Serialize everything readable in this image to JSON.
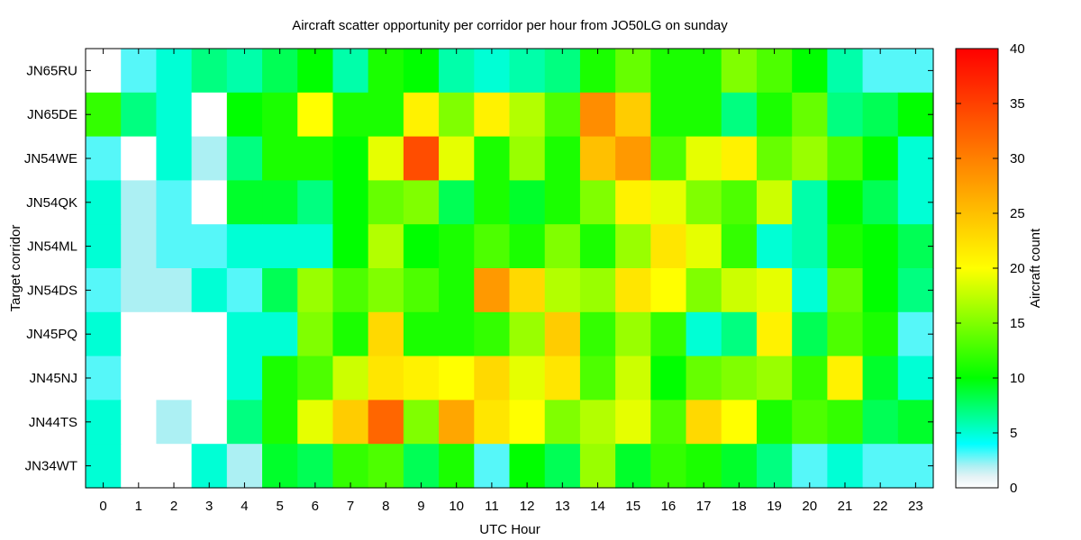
{
  "chart_data": {
    "type": "heatmap",
    "title": "Aircraft scatter opportunity per corridor per hour from JO50LG on sunday",
    "xlabel": "UTC Hour",
    "ylabel": "Target corridor",
    "colorbar_label": "Aircraft count",
    "x": [
      "0",
      "1",
      "2",
      "3",
      "4",
      "5",
      "6",
      "7",
      "8",
      "9",
      "10",
      "11",
      "12",
      "13",
      "14",
      "15",
      "16",
      "17",
      "18",
      "19",
      "20",
      "21",
      "22",
      "23"
    ],
    "y": [
      "JN65RU",
      "JN65DE",
      "JN54WE",
      "JN54QK",
      "JN54ML",
      "JN54DS",
      "JN45PQ",
      "JN45NJ",
      "JN44TS",
      "JN34WT"
    ],
    "zlim": [
      0,
      40
    ],
    "colorbar_ticks": [
      0,
      5,
      10,
      15,
      20,
      25,
      30,
      35,
      40
    ],
    "values": [
      [
        0,
        3,
        5,
        7,
        6,
        8,
        10,
        6,
        11,
        10,
        6,
        5,
        6,
        7,
        11,
        14,
        11,
        11,
        15,
        13,
        10,
        6,
        3,
        3
      ],
      [
        12,
        7,
        5,
        0,
        10,
        11,
        20,
        11,
        11,
        21,
        15,
        21,
        17,
        13,
        29,
        24,
        11,
        11,
        7,
        11,
        14,
        7,
        8,
        10
      ],
      [
        3,
        0,
        5,
        2,
        7,
        11,
        11,
        10,
        19,
        34,
        19,
        11,
        16,
        11,
        25,
        28,
        13,
        19,
        21,
        14,
        16,
        13,
        10,
        5
      ],
      [
        5,
        2,
        3,
        0,
        9,
        9,
        7,
        10,
        14,
        15,
        8,
        11,
        9,
        11,
        15,
        21,
        19,
        15,
        13,
        18,
        6,
        10,
        8,
        5
      ],
      [
        5,
        2,
        3,
        3,
        5,
        5,
        5,
        10,
        17,
        10,
        11,
        13,
        11,
        15,
        11,
        16,
        22,
        19,
        12,
        5,
        6,
        11,
        10,
        8
      ],
      [
        3,
        2,
        2,
        5,
        3,
        8,
        16,
        13,
        15,
        13,
        11,
        28,
        23,
        17,
        16,
        22,
        20,
        15,
        18,
        19,
        5,
        14,
        10,
        7
      ],
      [
        5,
        0,
        0,
        0,
        5,
        5,
        15,
        11,
        23,
        11,
        11,
        12,
        16,
        24,
        12,
        16,
        12,
        5,
        7,
        21,
        8,
        13,
        11,
        3
      ],
      [
        3,
        0,
        0,
        0,
        5,
        11,
        13,
        18,
        22,
        21,
        20,
        23,
        19,
        22,
        13,
        18,
        10,
        14,
        15,
        16,
        12,
        21,
        9,
        5
      ],
      [
        5,
        0,
        2,
        0,
        7,
        11,
        19,
        24,
        32,
        15,
        27,
        22,
        20,
        15,
        17,
        19,
        13,
        23,
        20,
        11,
        13,
        12,
        8,
        9
      ],
      [
        5,
        0,
        0,
        5,
        2,
        9,
        8,
        12,
        13,
        8,
        11,
        3,
        10,
        8,
        16,
        9,
        12,
        11,
        9,
        7,
        3,
        5,
        3,
        3
      ]
    ]
  }
}
